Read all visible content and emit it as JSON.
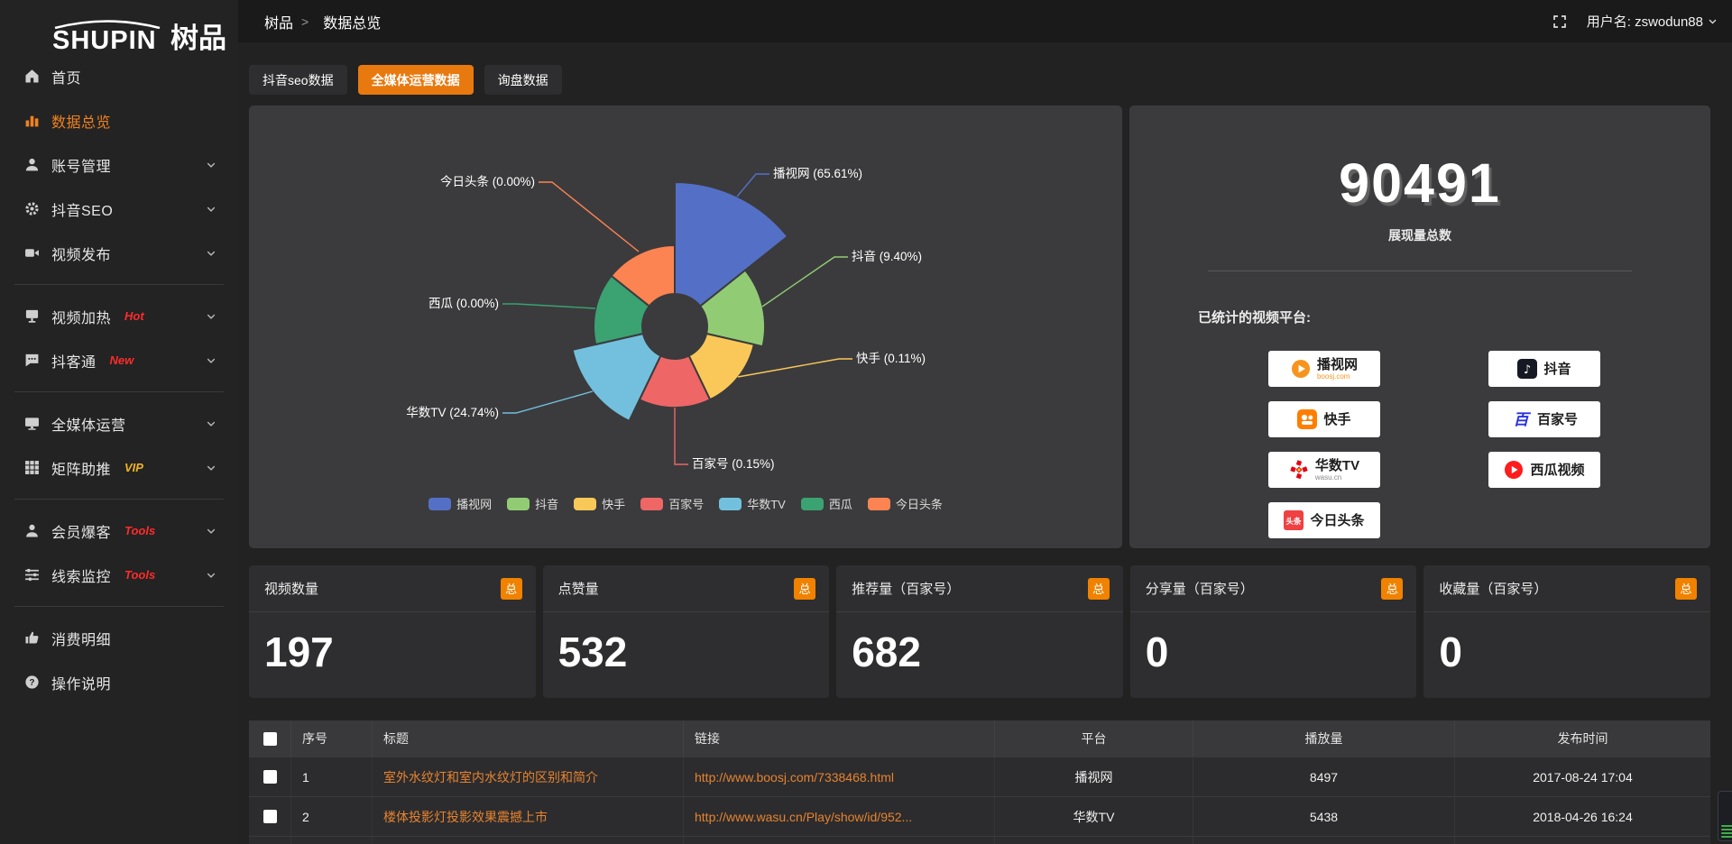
{
  "brand": {
    "name_en": "SHUPIN",
    "name_cn": "树品"
  },
  "topbar": {
    "breadcrumb": [
      {
        "icon": "memo-icon",
        "label": "树品"
      },
      {
        "icon": "bar-chart-icon",
        "label": "数据总览"
      }
    ],
    "separator": ">",
    "username": "用户名: zswodun88"
  },
  "sidebar": {
    "groups": [
      {
        "items": [
          {
            "icon": "home-icon",
            "label": "首页",
            "active": false,
            "expandable": false
          },
          {
            "icon": "bar-chart-icon",
            "label": "数据总览",
            "active": true,
            "expandable": false
          },
          {
            "icon": "user-icon",
            "label": "账号管理",
            "active": false,
            "expandable": true
          },
          {
            "icon": "gear-icon",
            "label": "抖音SEO",
            "active": false,
            "expandable": true
          },
          {
            "icon": "video-publish-icon",
            "label": "视频发布",
            "active": false,
            "expandable": true
          }
        ]
      },
      {
        "items": [
          {
            "icon": "screen-icon",
            "label": "视频加热",
            "badge": {
              "text": "Hot",
              "color": "#ff2b2b"
            },
            "expandable": true
          },
          {
            "icon": "chat-icon",
            "label": "抖客通",
            "badge": {
              "text": "New",
              "color": "#ff2b2b"
            },
            "expandable": true
          }
        ]
      },
      {
        "items": [
          {
            "icon": "monitor-icon",
            "label": "全媒体运营",
            "expandable": true
          },
          {
            "icon": "grid-icon",
            "label": "矩阵助推",
            "badge": {
              "text": "VIP",
              "color": "#f0b41e"
            },
            "expandable": true
          }
        ]
      },
      {
        "items": [
          {
            "icon": "member-icon",
            "label": "会员爆客",
            "badge": {
              "text": "Tools",
              "color": "#ff2b2b"
            },
            "expandable": true
          },
          {
            "icon": "sliders-icon",
            "label": "线索监控",
            "badge": {
              "text": "Tools",
              "color": "#ff2b2b"
            },
            "expandable": true
          }
        ]
      },
      {
        "items": [
          {
            "icon": "wallet-icon",
            "label": "消费明细",
            "expandable": false
          },
          {
            "icon": "help-icon",
            "label": "操作说明",
            "expandable": false
          }
        ]
      }
    ]
  },
  "tabs": [
    {
      "label": "抖音seo数据",
      "active": false
    },
    {
      "label": "全媒体运营数据",
      "active": true
    },
    {
      "label": "询盘数据",
      "active": false
    }
  ],
  "chart_data": {
    "type": "pie",
    "style": "nightingale-rose",
    "categories": [
      "播视网",
      "抖音",
      "快手",
      "百家号",
      "华数TV",
      "西瓜",
      "今日头条"
    ],
    "values": [
      65.61,
      9.4,
      0.11,
      0.15,
      24.74,
      0.0,
      0.0
    ],
    "unit": "%",
    "colors": [
      "#5470c6",
      "#91cc75",
      "#fac858",
      "#ee6666",
      "#73c0de",
      "#3ba272",
      "#fc8452"
    ],
    "legend_position": "bottom",
    "title": ""
  },
  "summary": {
    "total_value": "90491",
    "total_label": "展现量总数",
    "platforms_title": "已统计的视频平台:",
    "platform_columns": [
      [
        {
          "name": "播视网",
          "sub": "boosj.com",
          "logo": "boosj-logo"
        },
        {
          "name": "快手",
          "logo": "kuaishou-logo"
        },
        {
          "name": "华数TV",
          "sub": "wasu.cn",
          "logo": "wasu-logo"
        },
        {
          "name": "今日头条",
          "logo": "toutiao-logo"
        }
      ],
      [
        {
          "name": "抖音",
          "logo": "douyin-logo"
        },
        {
          "name": "百家号",
          "logo": "baijiahao-logo"
        },
        {
          "name": "西瓜视频",
          "logo": "xigua-logo"
        }
      ]
    ]
  },
  "stats": [
    {
      "title": "视频数量",
      "badge": "总",
      "value": "197"
    },
    {
      "title": "点赞量",
      "badge": "总",
      "value": "532"
    },
    {
      "title": "推荐量（百家号）",
      "badge": "总",
      "value": "682"
    },
    {
      "title": "分享量（百家号）",
      "badge": "总",
      "value": "0"
    },
    {
      "title": "收藏量（百家号）",
      "badge": "总",
      "value": "0"
    }
  ],
  "table": {
    "columns": [
      {
        "label": "序号"
      },
      {
        "label": "标题"
      },
      {
        "label": "链接"
      },
      {
        "label": "平台"
      },
      {
        "label": "播放量"
      },
      {
        "label": "发布时间"
      }
    ],
    "rows": [
      {
        "no": "1",
        "title": "室外水纹灯和室内水纹灯的区别和简介",
        "link": "http://www.boosj.com/7338468.html",
        "platform": "播视网",
        "plays": "8497",
        "time": "2017-08-24 17:04"
      },
      {
        "no": "2",
        "title": "楼体投影灯投影效果震撼上市",
        "link": "http://www.wasu.cn/Play/show/id/952...",
        "platform": "华数TV",
        "plays": "5438",
        "time": "2018-04-26 16:24"
      }
    ]
  }
}
